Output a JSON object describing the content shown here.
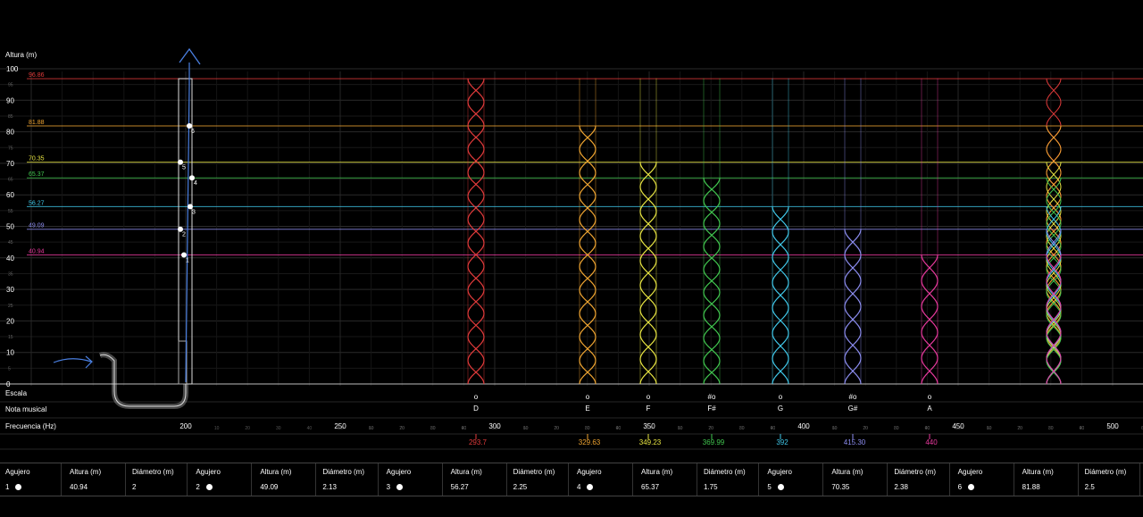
{
  "axis": {
    "y_label": "Altura (m)",
    "y_ticks": [
      "100",
      "90",
      "80",
      "70",
      "60",
      "50",
      "40",
      "30",
      "20",
      "10",
      "0"
    ],
    "y_minor_ticks": [
      "95",
      "85",
      "75",
      "65",
      "55",
      "45",
      "35",
      "25",
      "15",
      "5"
    ],
    "x_label": "Frecuencia (Hz)",
    "x_ticks": [
      "200",
      "250",
      "300",
      "350",
      "400",
      "450",
      "500"
    ],
    "x_minor_ticks": [
      "10",
      "20",
      "30",
      "40",
      "50",
      "60",
      "70",
      "80",
      "90"
    ],
    "row_escala": "Escala",
    "row_nota": "Nota musical"
  },
  "levels": [
    {
      "label": "96.86",
      "value": 96.86,
      "color": "#e23b3b"
    },
    {
      "label": "81.88",
      "value": 81.88,
      "color": "#f0a531"
    },
    {
      "label": "70.35",
      "value": 70.35,
      "color": "#e8e542"
    },
    {
      "label": "65.37",
      "value": 65.37,
      "color": "#41c64f"
    },
    {
      "label": "56.27",
      "value": 56.27,
      "color": "#3fc7e8"
    },
    {
      "label": "49.09",
      "value": 49.09,
      "color": "#8c8df0"
    },
    {
      "label": "40.94",
      "value": 40.94,
      "color": "#e8399d"
    }
  ],
  "tube_holes": [
    "1",
    "2",
    "3",
    "4",
    "5",
    "6"
  ],
  "notes": [
    {
      "note": "D",
      "scale": "o",
      "freq": "293.7",
      "height": 96.86,
      "color": "#e23b3b"
    },
    {
      "note": "E",
      "scale": "o",
      "freq": "329.63",
      "height": 81.88,
      "color": "#f0a531"
    },
    {
      "note": "F",
      "scale": "o",
      "freq": "349.23",
      "height": 70.35,
      "color": "#e8e542"
    },
    {
      "note": "F#",
      "scale": "#o",
      "freq": "369.99",
      "height": 65.37,
      "color": "#41c64f"
    },
    {
      "note": "G",
      "scale": "o",
      "freq": "392",
      "height": 56.27,
      "color": "#3fc7e8"
    },
    {
      "note": "G#",
      "scale": "#o",
      "freq": "415.30",
      "height": 49.09,
      "color": "#8c8df0"
    },
    {
      "note": "A",
      "scale": "o",
      "freq": "440",
      "height": 40.94,
      "color": "#e8399d"
    }
  ],
  "table": {
    "headers": {
      "hole": "Agujero",
      "height": "Altura (m)",
      "diameter": "Diámetro (m)"
    },
    "rows": [
      {
        "hole": "1",
        "height": "40.94",
        "diameter": "2"
      },
      {
        "hole": "2",
        "height": "49.09",
        "diameter": "2.13"
      },
      {
        "hole": "3",
        "height": "56.27",
        "diameter": "2.25"
      },
      {
        "hole": "4",
        "height": "65.37",
        "diameter": "1.75"
      },
      {
        "hole": "5",
        "height": "70.35",
        "diameter": "2.38"
      },
      {
        "hole": "6",
        "height": "81.88",
        "diameter": "2.5"
      }
    ]
  }
}
